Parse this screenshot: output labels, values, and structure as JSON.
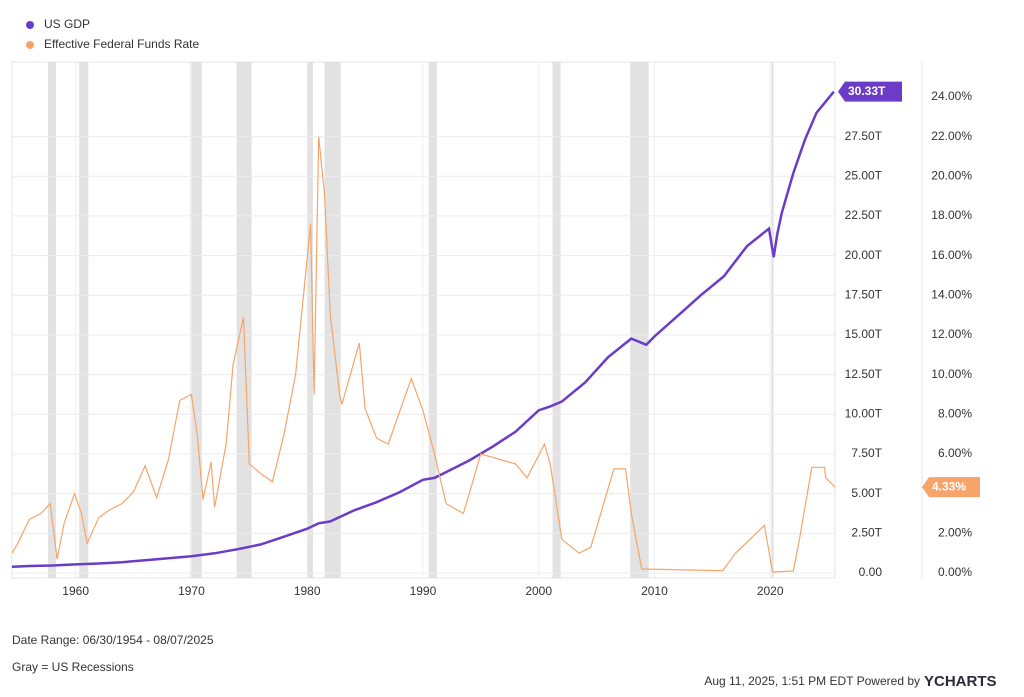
{
  "chart_data": {
    "type": "line",
    "legend": "top-left",
    "grid": true,
    "xlim": [
      1954.5,
      2025.6
    ],
    "xticks": [
      1960,
      1970,
      1980,
      1990,
      2000,
      2010,
      2020
    ],
    "ylim": [
      0,
      32.2
    ],
    "yticks": [
      {
        "value": 0,
        "label": "0.00"
      },
      {
        "value": 2.5,
        "label": "2.50T"
      },
      {
        "value": 5,
        "label": "5.00T"
      },
      {
        "value": 7.5,
        "label": "7.50T"
      },
      {
        "value": 10,
        "label": "10.00T"
      },
      {
        "value": 12.5,
        "label": "12.50T"
      },
      {
        "value": 15,
        "label": "15.00T"
      },
      {
        "value": 17.5,
        "label": "17.50T"
      },
      {
        "value": 20,
        "label": "20.00T"
      },
      {
        "value": 22.5,
        "label": "22.50T"
      },
      {
        "value": 25,
        "label": "25.00T"
      },
      {
        "value": 27.5,
        "label": "27.50T"
      }
    ],
    "y2lim": [
      0,
      25.76
    ],
    "y2ticks": [
      {
        "value": 0,
        "label": "0.00%"
      },
      {
        "value": 2,
        "label": "2.00%"
      },
      {
        "value": 4,
        "label": "4.00%"
      },
      {
        "value": 6,
        "label": "6.00%"
      },
      {
        "value": 8,
        "label": "8.00%"
      },
      {
        "value": 10,
        "label": "10.00%"
      },
      {
        "value": 12,
        "label": "12.00%"
      },
      {
        "value": 14,
        "label": "14.00%"
      },
      {
        "value": 16,
        "label": "16.00%"
      },
      {
        "value": 18,
        "label": "18.00%"
      },
      {
        "value": 20,
        "label": "20.00%"
      },
      {
        "value": 22,
        "label": "22.00%"
      },
      {
        "value": 24,
        "label": "24.00%"
      }
    ],
    "recessions": [
      [
        1957.6,
        1958.3
      ],
      [
        1960.3,
        1961.1
      ],
      [
        1969.9,
        1970.9
      ],
      [
        1973.9,
        1975.2
      ],
      [
        1980.0,
        1980.5
      ],
      [
        1981.5,
        1982.9
      ],
      [
        1990.5,
        1991.2
      ],
      [
        2001.2,
        2001.9
      ],
      [
        2007.9,
        2009.5
      ],
      [
        2020.1,
        2020.3
      ]
    ],
    "series": [
      {
        "name": "US GDP",
        "color": "#6a3cc8",
        "last_value_label": "30.33T",
        "x": [
          1954.5,
          1956,
          1958,
          1960,
          1962,
          1964,
          1966,
          1968,
          1970,
          1972,
          1974,
          1976,
          1978,
          1980,
          1981,
          1982,
          1984,
          1986,
          1988,
          1990,
          1991,
          1992,
          1994,
          1996,
          1998,
          2000,
          2001,
          2002,
          2004,
          2006,
          2008,
          2009.3,
          2010,
          2012,
          2014,
          2016,
          2018,
          2019.9,
          2020.3,
          2020.6,
          2021,
          2022,
          2023,
          2024,
          2025.5
        ],
        "values": [
          0.39,
          0.44,
          0.47,
          0.54,
          0.6,
          0.68,
          0.8,
          0.93,
          1.05,
          1.24,
          1.5,
          1.8,
          2.29,
          2.79,
          3.13,
          3.25,
          3.93,
          4.46,
          5.1,
          5.87,
          5.99,
          6.36,
          7.09,
          7.95,
          8.9,
          10.25,
          10.5,
          10.8,
          12.0,
          13.6,
          14.77,
          14.38,
          14.9,
          16.2,
          17.5,
          18.7,
          20.6,
          21.7,
          19.9,
          21.3,
          22.7,
          25.2,
          27.3,
          29.0,
          30.33
        ]
      },
      {
        "name": "Effective Federal Funds Rate",
        "color": "#f7a46b",
        "axis": "y2",
        "last_value_label": "4.33%",
        "x": [
          1954.5,
          1955,
          1956,
          1957,
          1957.8,
          1958.4,
          1959,
          1959.9,
          1960.5,
          1961,
          1962,
          1963,
          1964,
          1965,
          1966,
          1967,
          1968,
          1969,
          1970,
          1970.5,
          1971,
          1971.7,
          1972,
          1973,
          1973.6,
          1974.5,
          1975,
          1976,
          1977,
          1978,
          1979,
          1980.3,
          1980.6,
          1981,
          1981.5,
          1982,
          1982.8,
          1983,
          1984.5,
          1985,
          1986,
          1987,
          1989,
          1990,
          1991,
          1992,
          1993.5,
          1995,
          1998,
          1999,
          2000.5,
          2001,
          2002,
          2003.5,
          2004.5,
          2006.5,
          2007.5,
          2008,
          2008.9,
          2015.9,
          2017,
          2019.5,
          2020.2,
          2022,
          2022.5,
          2023.6,
          2024.7,
          2024.8,
          2025.6
        ],
        "values": [
          1.0,
          1.5,
          2.7,
          3.0,
          3.5,
          0.7,
          2.5,
          4.0,
          3.0,
          1.5,
          2.8,
          3.2,
          3.5,
          4.1,
          5.4,
          3.8,
          5.7,
          8.7,
          9.0,
          7.0,
          3.7,
          5.6,
          3.3,
          6.5,
          10.5,
          12.9,
          5.5,
          5.0,
          4.6,
          7.0,
          10.0,
          17.6,
          9.0,
          22.0,
          19.1,
          13.0,
          9.0,
          8.5,
          11.6,
          8.3,
          6.8,
          6.5,
          9.8,
          8.2,
          6.0,
          3.5,
          3.0,
          6.0,
          5.5,
          4.8,
          6.5,
          5.5,
          1.7,
          1.0,
          1.3,
          5.25,
          5.25,
          3.0,
          0.2,
          0.12,
          1.0,
          2.4,
          0.05,
          0.1,
          1.6,
          5.33,
          5.33,
          4.8,
          4.33
        ]
      }
    ]
  },
  "footer": {
    "date_range": "Date Range: 06/30/1954 - 08/07/2025",
    "note": "Gray = US Recessions",
    "timestamp": "Aug 11, 2025, 1:51 PM EDT Powered by",
    "logo": "YCHARTS"
  }
}
